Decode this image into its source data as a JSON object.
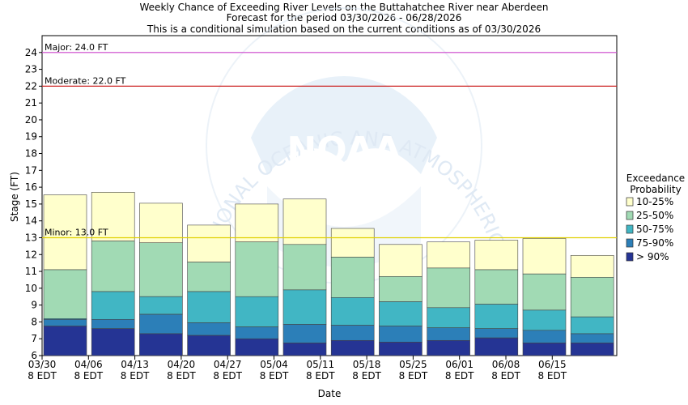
{
  "chart_data": {
    "type": "bar",
    "title": "Weekly Chance of Exceeding River Levels on the Buttahatchee River near Aberdeen",
    "subtitle_line1": "Forecast for the period 03/30/2026 - 06/28/2026",
    "subtitle_line2": "This is a conditional simulation based on the current conditions as of 03/30/2026",
    "xlabel": "Date",
    "ylabel": "Stage (FT)",
    "ylim": [
      6,
      25
    ],
    "yticks": [
      6,
      7,
      8,
      9,
      10,
      11,
      12,
      13,
      14,
      15,
      16,
      17,
      18,
      19,
      20,
      21,
      22,
      23,
      24
    ],
    "x_ticks": [
      {
        "date": "03/30",
        "time": "8 EDT"
      },
      {
        "date": "04/06",
        "time": "8 EDT"
      },
      {
        "date": "04/13",
        "time": "8 EDT"
      },
      {
        "date": "04/20",
        "time": "8 EDT"
      },
      {
        "date": "04/27",
        "time": "8 EDT"
      },
      {
        "date": "05/04",
        "time": "8 EDT"
      },
      {
        "date": "05/11",
        "time": "8 EDT"
      },
      {
        "date": "05/18",
        "time": "8 EDT"
      },
      {
        "date": "05/25",
        "time": "8 EDT"
      },
      {
        "date": "06/01",
        "time": "8 EDT"
      },
      {
        "date": "06/08",
        "time": "8 EDT"
      },
      {
        "date": "06/15",
        "time": "8 EDT"
      }
    ],
    "thresholds": [
      {
        "label": "Major: 24.0 FT",
        "value": 24.0,
        "color": "#cc44cc"
      },
      {
        "label": "Moderate: 22.0 FT",
        "value": 22.0,
        "color": "#cc2222"
      },
      {
        "label": "Minor: 13.0 FT",
        "value": 13.0,
        "color": "#e0d000"
      }
    ],
    "legend_title_line1": "Exceedance",
    "legend_title_line2": "Probability",
    "legend_position": "right",
    "series": [
      {
        "name": "10-25%",
        "color": "#ffffcc",
        "values": [
          15.55,
          15.7,
          15.05,
          13.75,
          15.0,
          15.3,
          13.55,
          12.6,
          12.75,
          12.85,
          12.95,
          11.95
        ]
      },
      {
        "name": "25-50%",
        "color": "#a1dab4",
        "values": [
          11.1,
          12.8,
          12.7,
          11.55,
          12.75,
          12.6,
          11.85,
          10.7,
          11.2,
          11.1,
          10.85,
          10.65
        ]
      },
      {
        "name": "50-75%",
        "color": "#41b6c4",
        "values": [
          8.2,
          9.8,
          9.5,
          9.8,
          9.5,
          9.9,
          9.45,
          9.2,
          8.85,
          9.05,
          8.7,
          8.3
        ]
      },
      {
        "name": "75-90%",
        "color": "#2c7fb8",
        "values": [
          8.15,
          8.15,
          8.45,
          7.95,
          7.7,
          7.85,
          7.8,
          7.75,
          7.65,
          7.6,
          7.5,
          7.3
        ]
      },
      {
        "name": "> 90%",
        "color": "#253494",
        "values": [
          7.75,
          7.6,
          7.3,
          7.2,
          7.0,
          6.75,
          6.9,
          6.8,
          6.9,
          7.05,
          6.75,
          6.75
        ]
      }
    ],
    "grid": false,
    "watermark_text": "NATIONAL OCEANIC AND ATMOSPHERIC ADMINISTRATION",
    "watermark_logo_text": "NOAA"
  }
}
